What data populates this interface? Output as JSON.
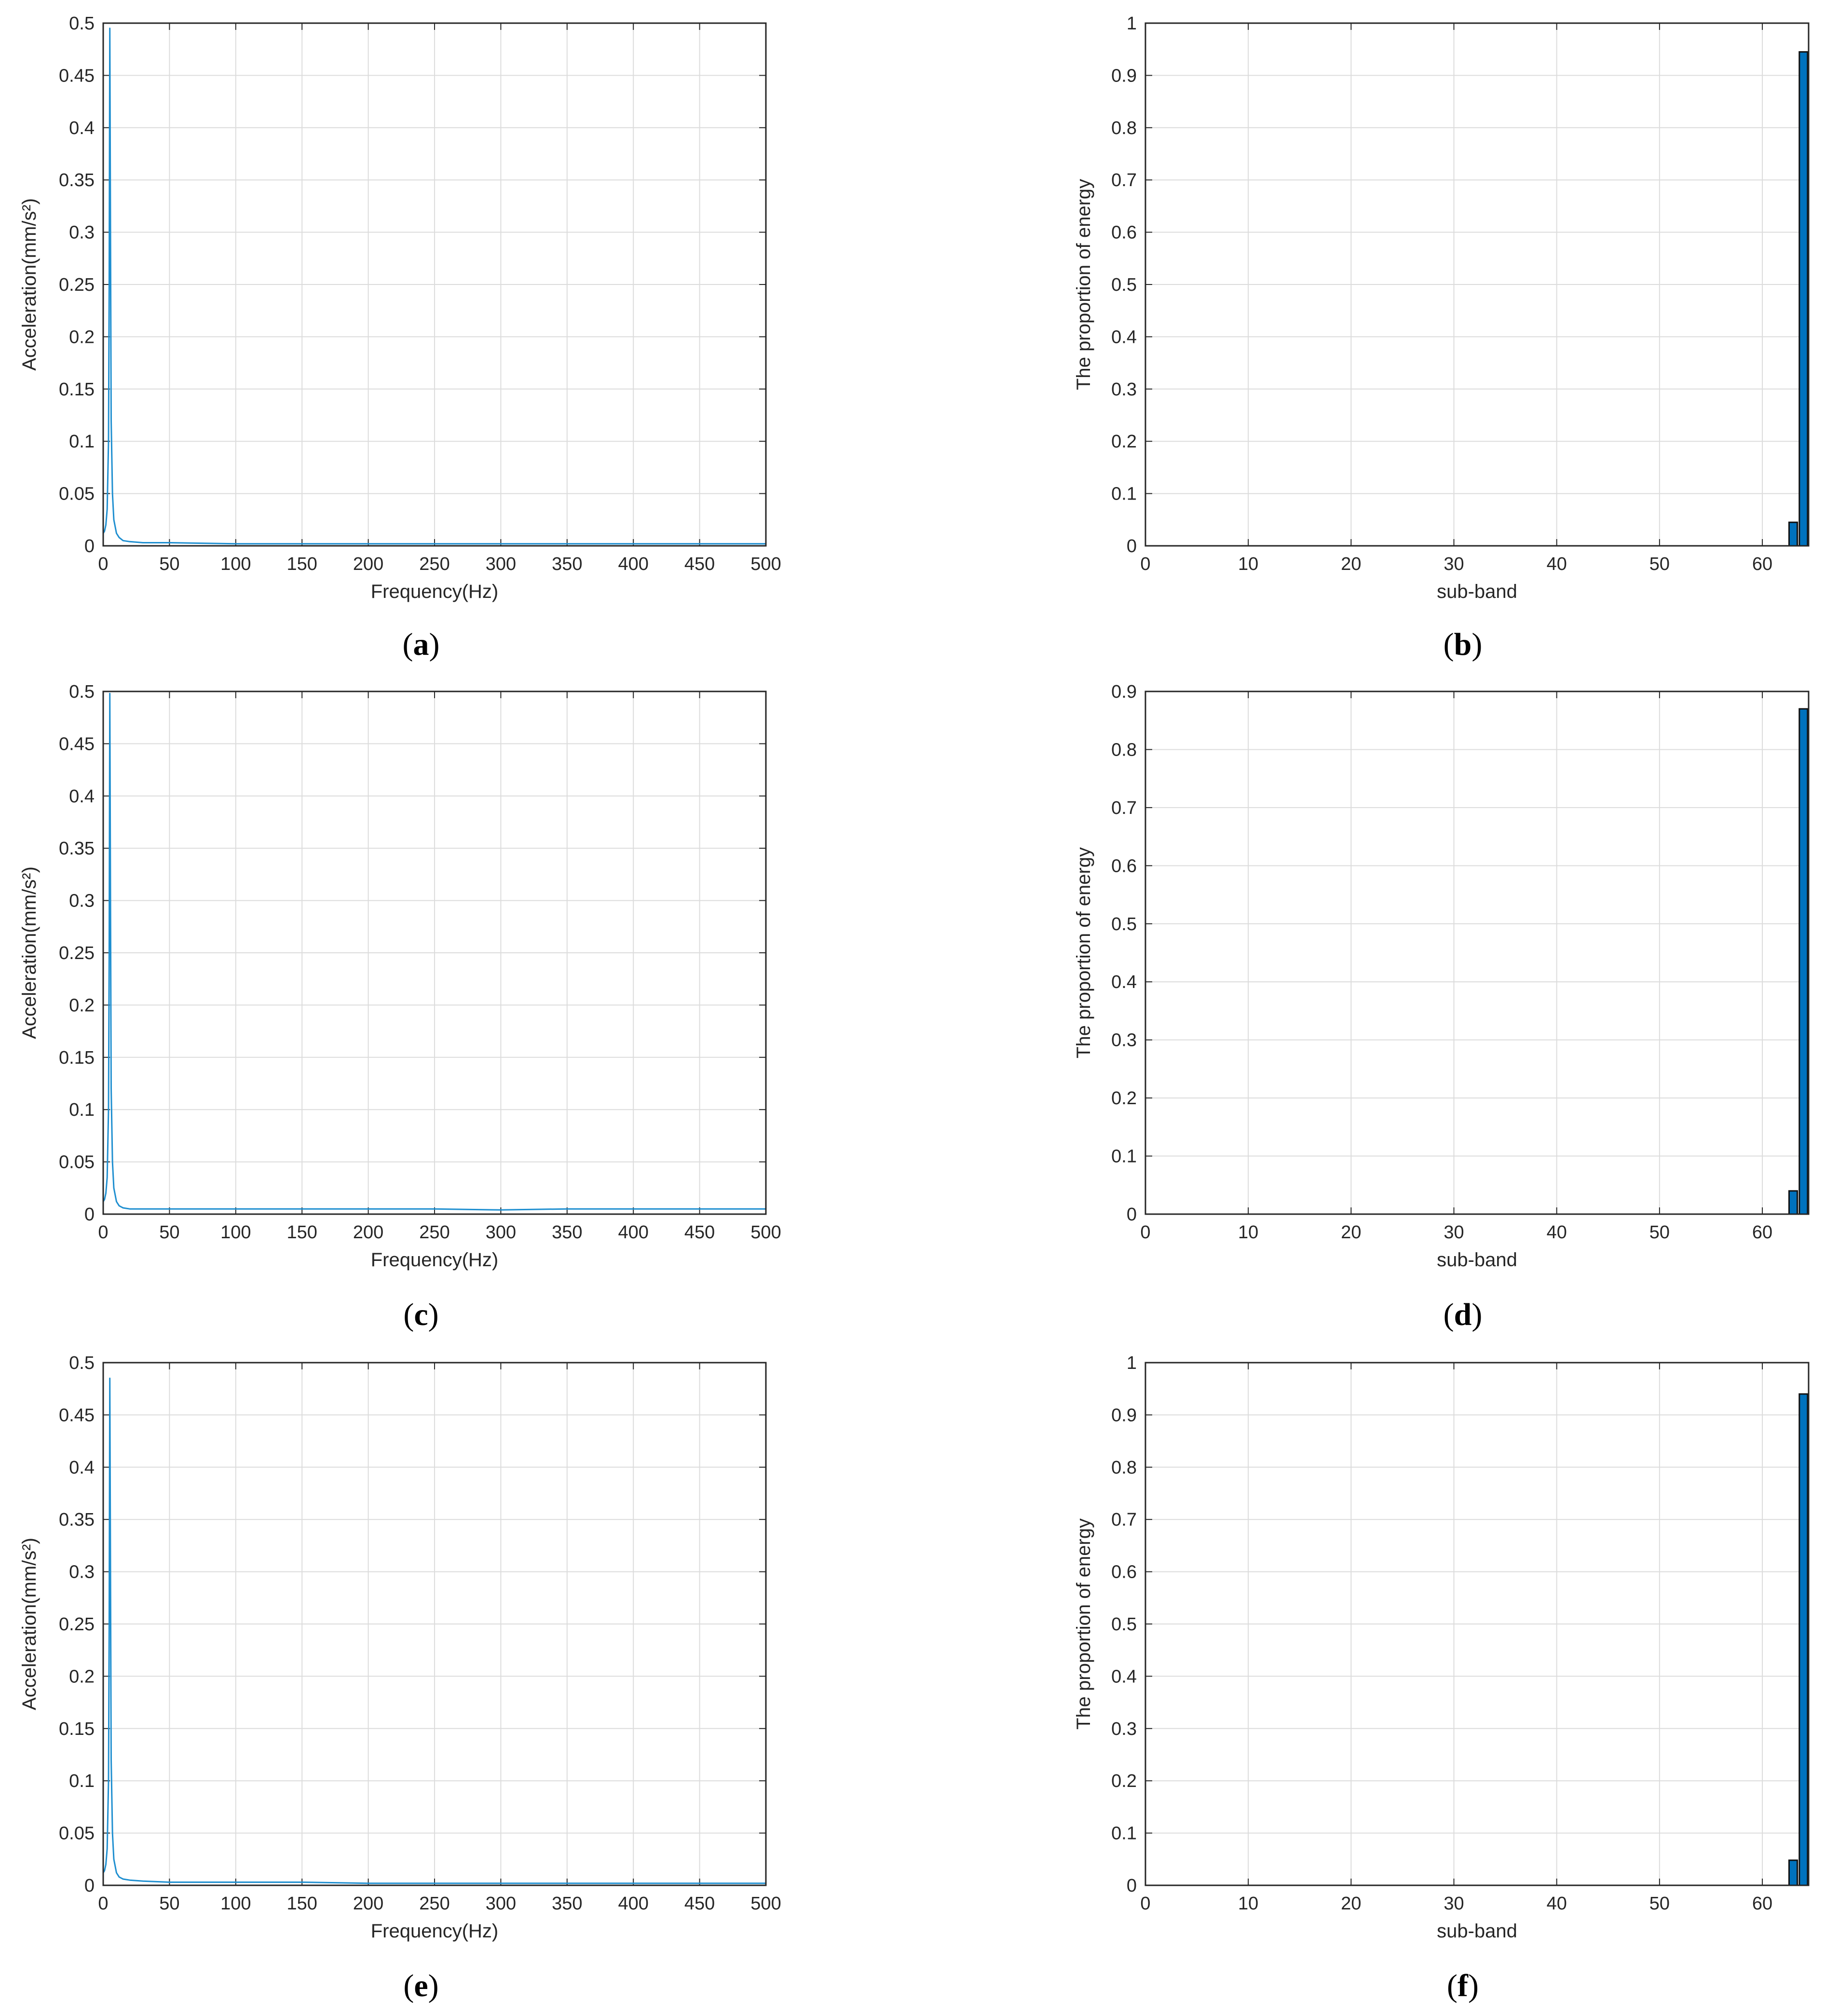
{
  "colors": {
    "line": "#1f8fd0",
    "bar_fill": "#0072bd",
    "bar_edge": "#111111",
    "grid": "#dcdcdc",
    "axis": "#262626",
    "text": "#262626"
  },
  "chart_data": [
    {
      "panel": "a",
      "caption_letter": "a",
      "type": "line",
      "xlabel": "Frequency(Hz)",
      "ylabel": "Acceleration(mm/s²)",
      "xlim": [
        0,
        500
      ],
      "ylim": [
        0,
        0.5
      ],
      "x_ticks": [
        "0",
        "50",
        "100",
        "150",
        "200",
        "250",
        "300",
        "350",
        "400",
        "450",
        "500"
      ],
      "y_ticks": [
        "0",
        "0.05",
        "0.1",
        "0.15",
        "0.2",
        "0.25",
        "0.3",
        "0.35",
        "0.4",
        "0.45",
        "0.5"
      ],
      "grid": true,
      "x": [
        0,
        1,
        2,
        3,
        4,
        4.5,
        5,
        5.5,
        6,
        7,
        8,
        10,
        12,
        15,
        20,
        30,
        50,
        100,
        150,
        200,
        250,
        300,
        350,
        400,
        450,
        500
      ],
      "y": [
        0.012,
        0.014,
        0.02,
        0.035,
        0.1,
        0.25,
        0.495,
        0.3,
        0.12,
        0.05,
        0.025,
        0.012,
        0.008,
        0.005,
        0.004,
        0.003,
        0.003,
        0.002,
        0.002,
        0.002,
        0.002,
        0.002,
        0.002,
        0.002,
        0.002,
        0.002
      ]
    },
    {
      "panel": "b",
      "caption_letter": "b",
      "type": "bar",
      "xlabel": "sub-band",
      "ylabel": "The proportion of energy",
      "xlim": [
        0,
        64.5
      ],
      "ylim": [
        0,
        1
      ],
      "x_ticks": [
        "0",
        "10",
        "20",
        "30",
        "40",
        "50",
        "60"
      ],
      "y_ticks": [
        "0",
        "0.1",
        "0.2",
        "0.3",
        "0.4",
        "0.5",
        "0.6",
        "0.7",
        "0.8",
        "0.9",
        "1"
      ],
      "grid": true,
      "categories": [
        63,
        64
      ],
      "values": [
        0.045,
        0.945
      ]
    },
    {
      "panel": "c",
      "caption_letter": "c",
      "type": "line",
      "xlabel": "Frequency(Hz)",
      "ylabel": "Acceleration(mm/s²)",
      "xlim": [
        0,
        500
      ],
      "ylim": [
        0,
        0.5
      ],
      "x_ticks": [
        "0",
        "50",
        "100",
        "150",
        "200",
        "250",
        "300",
        "350",
        "400",
        "450",
        "500"
      ],
      "y_ticks": [
        "0",
        "0.05",
        "0.1",
        "0.15",
        "0.2",
        "0.25",
        "0.3",
        "0.35",
        "0.4",
        "0.45",
        "0.5"
      ],
      "grid": true,
      "x": [
        0,
        1,
        2,
        3,
        4,
        4.5,
        5,
        5.5,
        6,
        7,
        8,
        10,
        12,
        15,
        20,
        30,
        50,
        100,
        150,
        200,
        250,
        300,
        350,
        400,
        450,
        500
      ],
      "y": [
        0.012,
        0.014,
        0.02,
        0.035,
        0.1,
        0.25,
        0.498,
        0.3,
        0.12,
        0.05,
        0.025,
        0.012,
        0.008,
        0.006,
        0.005,
        0.005,
        0.005,
        0.005,
        0.005,
        0.005,
        0.005,
        0.004,
        0.005,
        0.005,
        0.005,
        0.005
      ]
    },
    {
      "panel": "d",
      "caption_letter": "d",
      "type": "bar",
      "xlabel": "sub-band",
      "ylabel": "The proportion of energy",
      "xlim": [
        0,
        64.5
      ],
      "ylim": [
        0,
        0.9
      ],
      "x_ticks": [
        "0",
        "10",
        "20",
        "30",
        "40",
        "50",
        "60"
      ],
      "y_ticks": [
        "0",
        "0.1",
        "0.2",
        "0.3",
        "0.4",
        "0.5",
        "0.6",
        "0.7",
        "0.8",
        "0.9"
      ],
      "grid": true,
      "categories": [
        63,
        64
      ],
      "values": [
        0.04,
        0.87
      ]
    },
    {
      "panel": "e",
      "caption_letter": "e",
      "type": "line",
      "xlabel": "Frequency(Hz)",
      "ylabel": "Acceleration(mm/s²)",
      "xlim": [
        0,
        500
      ],
      "ylim": [
        0,
        0.5
      ],
      "x_ticks": [
        "0",
        "50",
        "100",
        "150",
        "200",
        "250",
        "300",
        "350",
        "400",
        "450",
        "500"
      ],
      "y_ticks": [
        "0",
        "0.05",
        "0.1",
        "0.15",
        "0.2",
        "0.25",
        "0.3",
        "0.35",
        "0.4",
        "0.45",
        "0.5"
      ],
      "grid": true,
      "x": [
        0,
        1,
        2,
        3,
        4,
        4.5,
        5,
        5.5,
        6,
        7,
        8,
        10,
        12,
        15,
        20,
        30,
        50,
        100,
        150,
        200,
        250,
        300,
        350,
        400,
        450,
        500
      ],
      "y": [
        0.012,
        0.014,
        0.02,
        0.035,
        0.1,
        0.25,
        0.485,
        0.3,
        0.12,
        0.05,
        0.025,
        0.012,
        0.008,
        0.006,
        0.005,
        0.004,
        0.003,
        0.003,
        0.003,
        0.002,
        0.002,
        0.002,
        0.002,
        0.002,
        0.002,
        0.002
      ]
    },
    {
      "panel": "f",
      "caption_letter": "f",
      "type": "bar",
      "xlabel": "sub-band",
      "ylabel": "The proportion of energy",
      "xlim": [
        0,
        64.5
      ],
      "ylim": [
        0,
        1
      ],
      "x_ticks": [
        "0",
        "10",
        "20",
        "30",
        "40",
        "50",
        "60"
      ],
      "y_ticks": [
        "0",
        "0.1",
        "0.2",
        "0.3",
        "0.4",
        "0.5",
        "0.6",
        "0.7",
        "0.8",
        "0.9",
        "1"
      ],
      "grid": true,
      "categories": [
        63,
        64
      ],
      "values": [
        0.048,
        0.94
      ]
    }
  ]
}
